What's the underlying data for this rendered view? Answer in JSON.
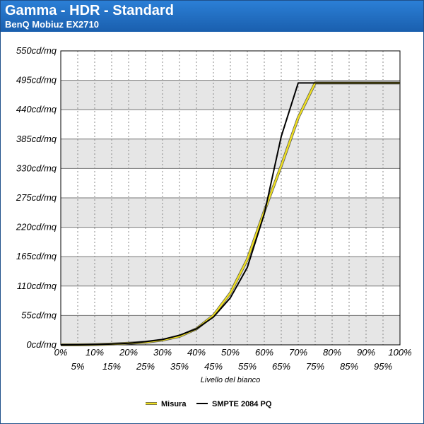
{
  "header": {
    "title": "Gamma - HDR - Standard",
    "subtitle": "BenQ Mobiuz EX2710"
  },
  "chart_data": {
    "type": "line",
    "title": "Gamma - HDR - Standard",
    "subtitle": "BenQ Mobiuz EX2710",
    "xlabel": "Livello del bianco",
    "ylabel": "",
    "x": [
      0,
      5,
      10,
      15,
      20,
      25,
      30,
      35,
      40,
      45,
      50,
      55,
      60,
      65,
      70,
      75,
      80,
      85,
      90,
      95,
      100
    ],
    "x_tick_labels": [
      "0%",
      "5%",
      "10%",
      "15%",
      "20%",
      "25%",
      "30%",
      "35%",
      "40%",
      "45%",
      "50%",
      "55%",
      "60%",
      "65%",
      "70%",
      "75%",
      "80%",
      "85%",
      "90%",
      "95%",
      "100%"
    ],
    "y_ticks": [
      0,
      55,
      110,
      165,
      220,
      275,
      330,
      385,
      440,
      495,
      550
    ],
    "y_tick_labels": [
      "0cd/mq",
      "55cd/mq",
      "110cd/mq",
      "165cd/mq",
      "220cd/mq",
      "275cd/mq",
      "330cd/mq",
      "385cd/mq",
      "440cd/mq",
      "495cd/mq",
      "550cd/mq"
    ],
    "xlim": [
      0,
      100
    ],
    "ylim": [
      0,
      550
    ],
    "grid": true,
    "legend_position": "bottom",
    "series": [
      {
        "name": "Misura",
        "color": "#f0e020",
        "values": [
          0,
          0,
          0.5,
          1.5,
          3,
          5,
          9,
          16,
          30,
          55,
          97,
          160,
          250,
          335,
          425,
          490,
          490,
          490,
          490,
          490,
          490
        ]
      },
      {
        "name": "SMPTE 2084 PQ",
        "color": "#000000",
        "values": [
          0,
          0.2,
          0.6,
          1.5,
          3,
          6,
          10,
          18,
          30,
          52,
          88,
          145,
          245,
          390,
          490,
          490,
          490,
          490,
          490,
          490,
          490
        ]
      }
    ]
  }
}
